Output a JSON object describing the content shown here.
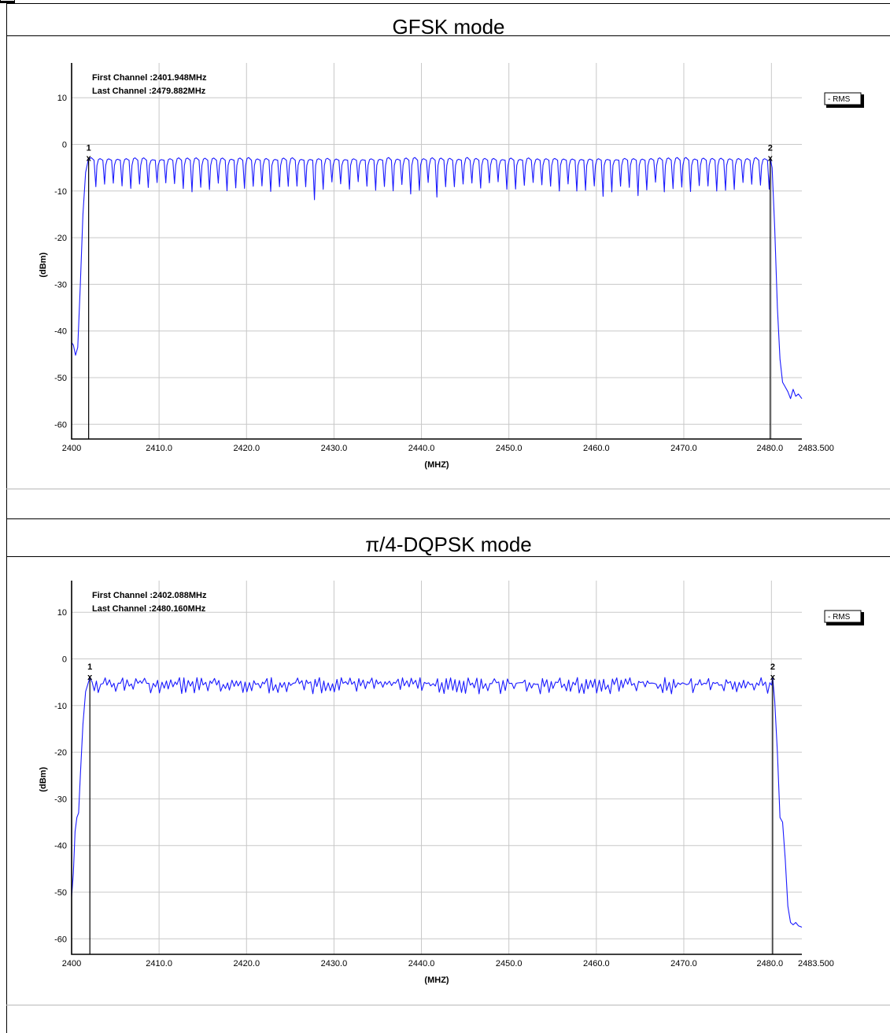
{
  "sections": [
    {
      "title": "GFSK mode",
      "chart_data": {
        "type": "line",
        "xlabel": "(MHZ)",
        "ylabel": "(dBm)",
        "xlim": [
          2400,
          2483.5
        ],
        "ylim": [
          -63,
          17
        ],
        "x_ticks": [
          2400,
          2410,
          2420,
          2430,
          2440,
          2450,
          2460,
          2470,
          2480.02,
          2483.5
        ],
        "x_tick_labels": [
          "2400",
          "2410.0",
          "2420.0",
          "2430.0",
          "2440.0",
          "2450.0",
          "2460.0",
          "2470.0",
          "2480.0",
          "2483.500"
        ],
        "y_ticks": [
          10,
          0,
          -10,
          -20,
          -30,
          -40,
          -50,
          -60
        ],
        "y_tick_labels": [
          "10",
          "0",
          "-10",
          "-20",
          "-30",
          "-40",
          "-50",
          "-60"
        ],
        "grid": true,
        "legend": {
          "position": "top-right",
          "label": "- RMS"
        },
        "annotations": [
          "First Channel :2401.948MHz",
          "Last Channel :2479.882MHz"
        ],
        "markers": [
          {
            "label": "1",
            "x": 2401.948,
            "y": -3
          },
          {
            "label": "2",
            "x": 2479.882,
            "y": -3
          }
        ],
        "trace": {
          "color": "#1a1aff",
          "pattern": "comb",
          "channel_spacing_mhz": 1.0,
          "peak_dbm": -3,
          "trough_dbm": [
            -8,
            -12
          ],
          "edge_points": [
            [
              2400,
              -42.5
            ],
            [
              2400.2,
              -43
            ],
            [
              2400.45,
              -45.2
            ],
            [
              2400.7,
              -43.5
            ],
            [
              2401.0,
              -30
            ],
            [
              2401.3,
              -15
            ],
            [
              2401.6,
              -6
            ],
            [
              2401.948,
              -3
            ]
          ],
          "tail_points": [
            [
              2479.882,
              -3
            ],
            [
              2480.1,
              -5
            ],
            [
              2480.4,
              -18
            ],
            [
              2480.7,
              -35
            ],
            [
              2481.0,
              -46
            ],
            [
              2481.3,
              -51
            ],
            [
              2481.6,
              -52
            ],
            [
              2481.9,
              -53
            ],
            [
              2482.2,
              -54.5
            ],
            [
              2482.5,
              -52.5
            ],
            [
              2482.8,
              -54
            ],
            [
              2483.1,
              -53.5
            ],
            [
              2483.5,
              -54.5
            ]
          ]
        }
      }
    },
    {
      "title": "π/4-DQPSK mode",
      "chart_data": {
        "type": "line",
        "xlabel": "(MHZ)",
        "ylabel": "(dBm)",
        "xlim": [
          2400,
          2483.5
        ],
        "ylim": [
          -63,
          17
        ],
        "x_ticks": [
          2400,
          2410,
          2420,
          2430,
          2440,
          2450,
          2460,
          2470,
          2480.02,
          2483.5
        ],
        "x_tick_labels": [
          "2400",
          "2410.0",
          "2420.0",
          "2430.0",
          "2440.0",
          "2450.0",
          "2460.0",
          "2470.0",
          "2480.0",
          "2483.500"
        ],
        "y_ticks": [
          10,
          0,
          -10,
          -20,
          -30,
          -40,
          -50,
          -60
        ],
        "y_tick_labels": [
          "10",
          "0",
          "-10",
          "-20",
          "-30",
          "-40",
          "-50",
          "-60"
        ],
        "grid": true,
        "legend": {
          "position": "top-right",
          "label": "- RMS"
        },
        "annotations": [
          "First Channel :2402.088MHz",
          "Last Channel :2480.160MHz"
        ],
        "markers": [
          {
            "label": "1",
            "x": 2402.088,
            "y": -4
          },
          {
            "label": "2",
            "x": 2480.16,
            "y": -4
          }
        ],
        "trace": {
          "color": "#1a1aff",
          "pattern": "ripple",
          "channel_spacing_mhz": 1.0,
          "peak_dbm": -4,
          "trough_dbm": [
            -5,
            -7.5
          ],
          "edge_points": [
            [
              2400,
              -51
            ],
            [
              2400.2,
              -46
            ],
            [
              2400.4,
              -37
            ],
            [
              2400.6,
              -34
            ],
            [
              2400.8,
              -33
            ],
            [
              2401.0,
              -25
            ],
            [
              2401.3,
              -14
            ],
            [
              2401.6,
              -7
            ],
            [
              2402.088,
              -4
            ]
          ],
          "tail_points": [
            [
              2480.16,
              -4
            ],
            [
              2480.4,
              -9
            ],
            [
              2480.7,
              -20
            ],
            [
              2481.0,
              -34
            ],
            [
              2481.3,
              -35
            ],
            [
              2481.6,
              -43
            ],
            [
              2481.9,
              -53
            ],
            [
              2482.2,
              -56.5
            ],
            [
              2482.5,
              -57
            ],
            [
              2482.8,
              -56.5
            ],
            [
              2483.1,
              -57.2
            ],
            [
              2483.5,
              -57.5
            ]
          ]
        }
      }
    }
  ]
}
